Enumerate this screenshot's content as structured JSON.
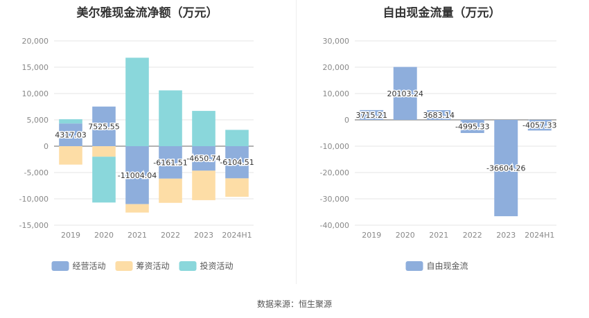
{
  "page": {
    "source_text": "数据来源：恒生聚源"
  },
  "chart_data": [
    {
      "type": "bar",
      "stacked": true,
      "title": "美尔雅现金流净额（万元）",
      "categories": [
        "2019",
        "2020",
        "2021",
        "2022",
        "2023",
        "2024H1"
      ],
      "ylim": [
        -15000,
        20000
      ],
      "yticks": [
        20000,
        15000,
        10000,
        5000,
        0,
        -5000,
        -10000,
        -15000
      ],
      "ytick_labels": [
        "20,000",
        "15,000",
        "10,000",
        "5,000",
        "0",
        "-5,000",
        "-10,000",
        "-15,000"
      ],
      "grid": true,
      "legend_position": "bottom-center",
      "series": [
        {
          "name": "经营活动",
          "color": "#8eaedc",
          "values": [
            4317.03,
            7525.55,
            -11004.04,
            -6161.51,
            -4650.74,
            -6104.51
          ],
          "labels": [
            "4317.03",
            "7525.55",
            "-11004.04",
            "-6161.51",
            "-4650.74",
            "-6104.51"
          ]
        },
        {
          "name": "筹资活动",
          "color": "#fddda6",
          "values": [
            -3500,
            -2000,
            -1600,
            -4600,
            -5600,
            -3500
          ]
        },
        {
          "name": "投资活动",
          "color": "#8ad7db",
          "values": [
            800,
            -8700,
            16800,
            10600,
            6700,
            3100
          ]
        }
      ]
    },
    {
      "type": "bar",
      "title": "自由现金流量（万元）",
      "categories": [
        "2019",
        "2020",
        "2021",
        "2022",
        "2023",
        "2024H1"
      ],
      "ylim": [
        -40000,
        30000
      ],
      "yticks": [
        30000,
        20000,
        10000,
        0,
        -10000,
        -20000,
        -30000,
        -40000
      ],
      "ytick_labels": [
        "30,000",
        "20,000",
        "10,000",
        "0",
        "-10,000",
        "-20,000",
        "-30,000",
        "-40,000"
      ],
      "grid": true,
      "legend_position": "bottom-center",
      "series": [
        {
          "name": "自由现金流",
          "color": "#8eaedc",
          "values": [
            3715.21,
            20103.24,
            3683.14,
            -4995.33,
            -36604.26,
            -4057.33
          ],
          "labels": [
            "3715.21",
            "20103.24",
            "3683.14",
            "-4995.33",
            "-36604.26",
            "-4057.33"
          ]
        }
      ]
    }
  ]
}
